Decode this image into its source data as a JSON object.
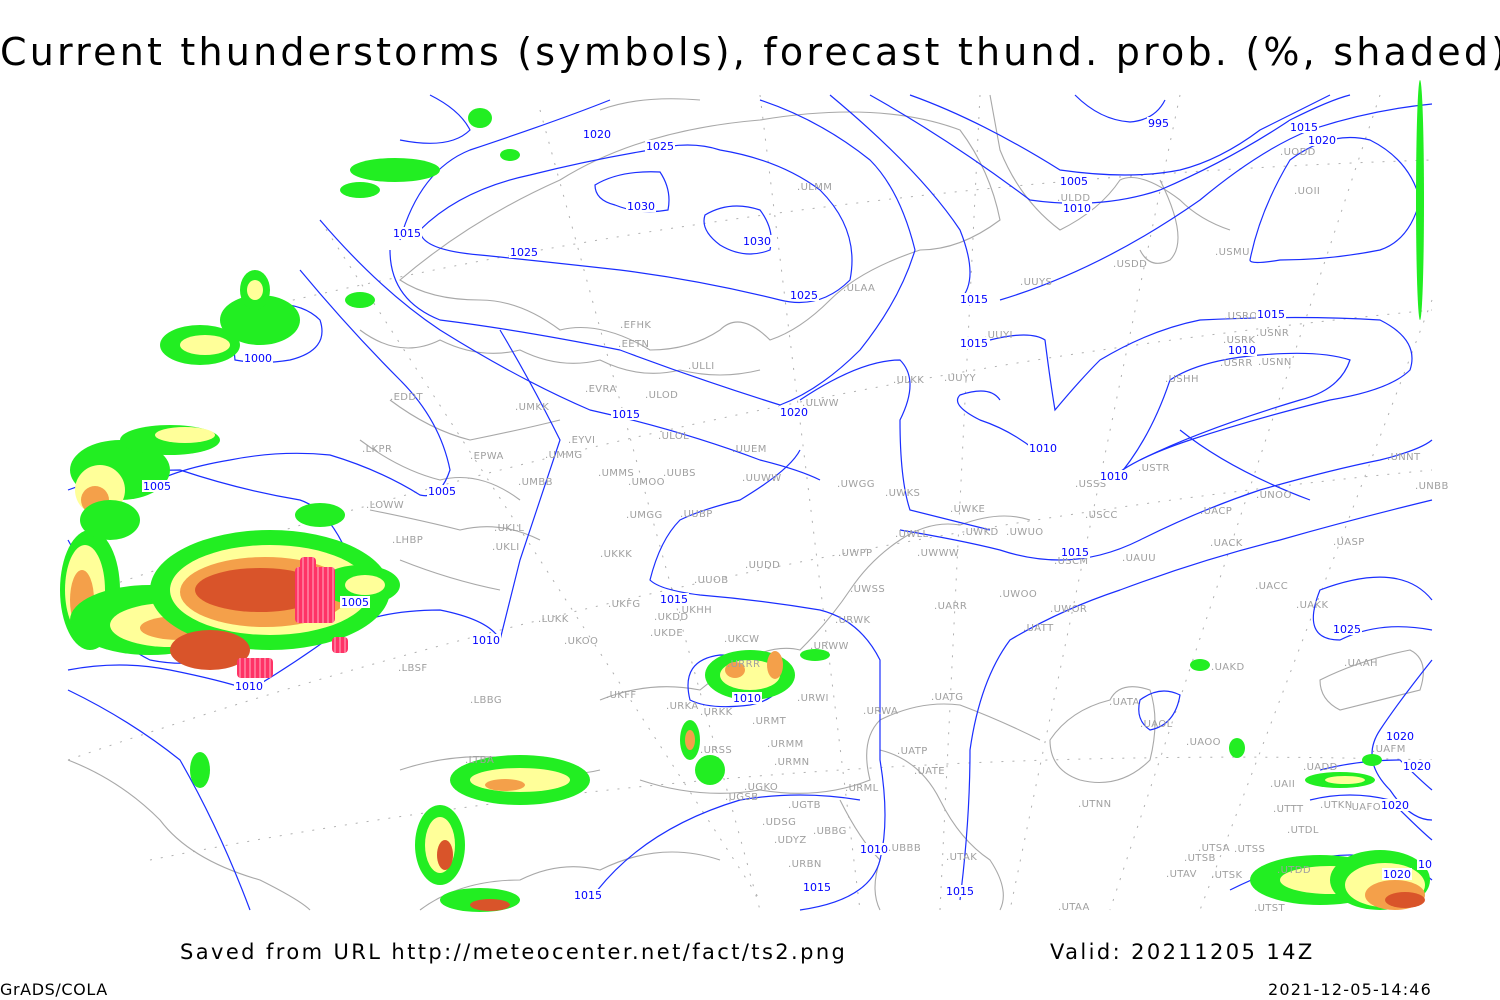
{
  "title": "Current thunderstorms (symbols), forecast thund. prob. (%, shaded)",
  "footer": {
    "saved_from": "Saved from URL http://meteocenter.net/fact/ts2.png",
    "valid": "Valid: 20211205 14Z",
    "software": "GrADS/COLA",
    "timestamp": "2021-12-05-14:46"
  },
  "colors": {
    "isobar": "#1a2eff",
    "coastline": "#a8a8a8",
    "prob_low": "#22ee22",
    "prob_mid": "#ffff99",
    "prob_high": "#f4a04a",
    "prob_very_high": "#d9542a",
    "thunderstorm_symbol": "#ff3366"
  },
  "isobar_labels": [
    "1020",
    "1025",
    "1030",
    "1025",
    "1015",
    "1030",
    "1025",
    "1015",
    "1015",
    "995",
    "1005",
    "1010",
    "1015",
    "1020",
    "1015",
    "1010",
    "1000",
    "1005",
    "1005",
    "1015",
    "1020",
    "1010",
    "1010",
    "1015",
    "1015",
    "1005",
    "1010",
    "1010",
    "1010",
    "1025",
    "1020",
    "1020",
    "1020",
    "1020",
    "1010",
    "1015",
    "1015",
    "1015",
    "10"
  ],
  "stations": [
    "EDDT",
    "LKPR",
    "EPWA",
    "UMKK",
    "EVRA",
    "ULOD",
    "EYVI",
    "UMMG",
    "ULOL",
    "UUEM",
    "UMMS",
    "UMOO",
    "UUBS",
    "UUWW",
    "UMBB",
    "LOWW",
    "UKLL",
    "LHBP",
    "UKLI",
    "UMGG",
    "UUBP",
    "UKKK",
    "UUDD",
    "UUOB",
    "UKHH",
    "UKFG",
    "UKDD",
    "UKDE",
    "LUKK",
    "UKOO",
    "UKCW",
    "LBSF",
    "URRR",
    "UKFF",
    "URKA",
    "URKK",
    "LBBG",
    "URWI",
    "URMT",
    "URMM",
    "URSS",
    "URMN",
    "UGKO",
    "UGSB",
    "UGTB",
    "UDSG",
    "UDYZ",
    "UBBG",
    "URML",
    "UBBB",
    "URBN",
    "UATG",
    "URWA",
    "UATP",
    "UATE",
    "UTAK",
    "LTBA",
    "UWGG",
    "UWKS",
    "UWKE",
    "UWKD",
    "UWUO",
    "UWLL",
    "UWWW",
    "UWPP",
    "UWSS",
    "URWK",
    "URWW",
    "UARR",
    "UWOO",
    "UWOR",
    "UATT",
    "USCM",
    "UAUU",
    "USCC",
    "USSS",
    "USTR",
    "UACP",
    "UACK",
    "UASP",
    "UNOO",
    "UNNT",
    "UNBB",
    "USHH",
    "USRR",
    "USNN",
    "USRK",
    "USNR",
    "USRO",
    "USMU",
    "USDD",
    "UOII",
    "UODD",
    "ULDD",
    "UUYY",
    "ULKK",
    "UUYI",
    "UUYS",
    "ULAA",
    "ULLI",
    "EFHK",
    "EETN",
    "ULWW",
    "ULMM",
    "UACC",
    "UAKK",
    "UAKD",
    "UAAH",
    "UATA",
    "UAOL",
    "UAOO",
    "UTNN",
    "UAFM",
    "UADD",
    "UAII",
    "UTTT",
    "UTKN",
    "UAFO",
    "UTDL",
    "UTSA",
    "UTSS",
    "UTSB",
    "UTAV",
    "UTSK",
    "UTDD",
    "UTAA",
    "UTST"
  ]
}
